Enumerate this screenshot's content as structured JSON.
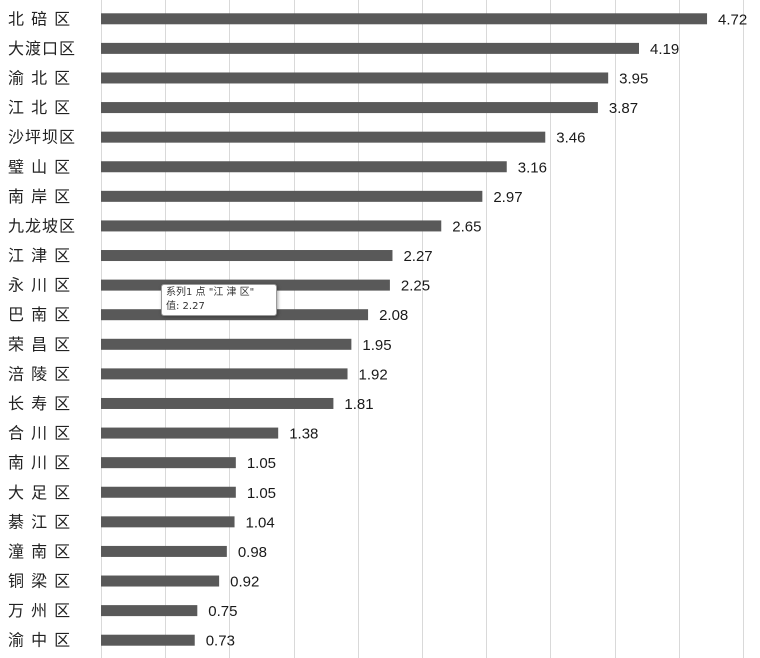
{
  "chart_data": {
    "type": "bar",
    "orientation": "horizontal",
    "categories": [
      "北碚区",
      "大渡口区",
      "渝北区",
      "江北区",
      "沙坪坝区",
      "璧山区",
      "南岸区",
      "九龙坡区",
      "江津区",
      "永川区",
      "巴南区",
      "荣昌区",
      "涪陵区",
      "长寿区",
      "合川区",
      "南川区",
      "大足区",
      "綦江区",
      "潼南区",
      "铜梁区",
      "万州区",
      "渝中区"
    ],
    "category_labels": [
      "北 碚 区",
      "大渡口区",
      "渝 北 区",
      "江 北 区",
      "沙坪坝区",
      "璧 山 区",
      "南 岸 区",
      "九龙坡区",
      "江 津 区",
      "永 川 区",
      "巴 南 区",
      "荣 昌 区",
      "涪 陵 区",
      "长 寿 区",
      "合 川 区",
      "南 川 区",
      "大 足 区",
      "綦 江 区",
      "潼 南 区",
      "铜 梁 区",
      "万 州 区",
      "渝 中 区"
    ],
    "values": [
      4.72,
      4.19,
      3.95,
      3.87,
      3.46,
      3.16,
      2.97,
      2.65,
      2.27,
      2.25,
      2.08,
      1.95,
      1.92,
      1.81,
      1.38,
      1.05,
      1.05,
      1.04,
      0.98,
      0.92,
      0.75,
      0.73
    ],
    "value_labels": [
      "4.72",
      "4.19",
      "3.95",
      "3.87",
      "3.46",
      "3.16",
      "2.97",
      "2.65",
      "2.27",
      "2.25",
      "2.08",
      "1.95",
      "1.92",
      "1.81",
      "1.38",
      "1.05",
      "1.05",
      "1.04",
      "0.98",
      "0.92",
      "0.75",
      "0.73"
    ],
    "xlim": [
      0,
      5
    ],
    "grid": true,
    "bar_color": "#595959",
    "grid_color": "#d9d9d9"
  },
  "tooltip": {
    "line1": "系列1 点 \"江 津 区\"",
    "line2": "值: 2.27"
  }
}
